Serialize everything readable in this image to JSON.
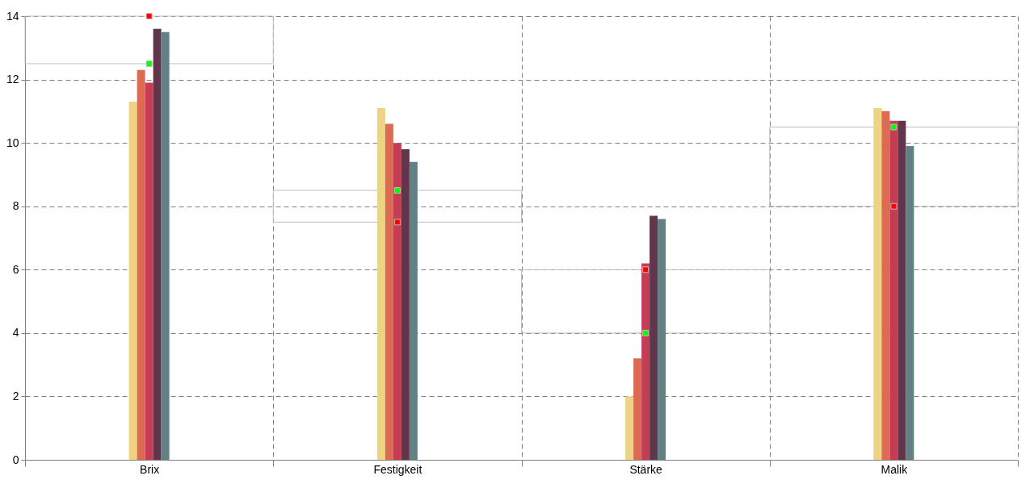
{
  "chart_data": {
    "type": "bar",
    "categories": [
      "Brix",
      "Festigkeit",
      "Stärke",
      "Malik"
    ],
    "series": [
      {
        "color": "#edd382",
        "values": [
          11.3,
          11.1,
          2.0,
          11.1
        ]
      },
      {
        "color": "#dd6a53",
        "values": [
          12.3,
          10.6,
          3.2,
          11.0
        ]
      },
      {
        "color": "#c43c55",
        "values": [
          11.9,
          10.0,
          6.2,
          10.7
        ]
      },
      {
        "color": "#61354a",
        "values": [
          13.6,
          9.8,
          7.7,
          10.7
        ]
      },
      {
        "color": "#628184",
        "values": [
          13.5,
          9.4,
          7.6,
          9.9
        ]
      },
      {
        "type": "bar",
        "color": "#c0c0c0",
        "base": [
          12.5,
          7.5,
          4,
          8
        ],
        "values": [
          1.5,
          1,
          2,
          2.5
        ]
      },
      {
        "type": "scatter",
        "color": "#00ff00",
        "x": [
          "Brix",
          "Festigkeit",
          "Stärke",
          "Malik"
        ],
        "values": [
          12.5,
          8.5,
          4,
          10.5
        ]
      },
      {
        "type": "scatter",
        "color": "#ff0000",
        "x": [
          "Brix",
          "Festigkeit",
          "Stärke",
          "Malik"
        ],
        "values": [
          14,
          7.5,
          6,
          8
        ]
      }
    ],
    "ylim": [
      0,
      14
    ],
    "yticks": [
      0,
      2,
      4,
      6,
      8,
      10,
      12,
      14
    ],
    "grid": true,
    "marker": "square"
  }
}
